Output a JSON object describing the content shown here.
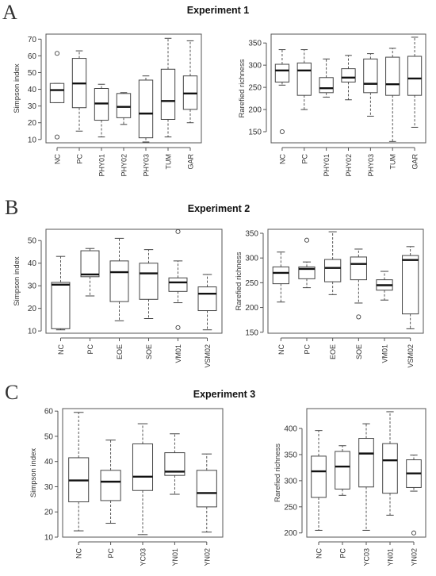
{
  "chart_data": [
    {
      "panel": "A",
      "title": "Experiment 1",
      "charts": [
        {
          "type": "boxplot",
          "ylabel": "Simpson index",
          "ylim": [
            8,
            73
          ],
          "yticks": [
            10,
            20,
            30,
            40,
            50,
            60,
            70
          ],
          "categories": [
            "NC",
            "PC",
            "PHY01",
            "PHY02",
            "PHY03",
            "TUM",
            "GAR"
          ],
          "boxes": [
            {
              "whisker_low": 32,
              "q1": 32,
              "median": 39.5,
              "q3": 43.5,
              "whisker_high": 43.5,
              "outliers": [
                61.5,
                11.5
              ]
            },
            {
              "whisker_low": 15,
              "q1": 29,
              "median": 43.5,
              "q3": 58.5,
              "whisker_high": 63,
              "outliers": []
            },
            {
              "whisker_low": 11.5,
              "q1": 21.5,
              "median": 31.5,
              "q3": 40.5,
              "whisker_high": 43,
              "outliers": []
            },
            {
              "whisker_low": 19,
              "q1": 23,
              "median": 29.5,
              "q3": 37.5,
              "whisker_high": 38,
              "outliers": []
            },
            {
              "whisker_low": 8.5,
              "q1": 11,
              "median": 25.5,
              "q3": 45.5,
              "whisker_high": 48,
              "outliers": []
            },
            {
              "whisker_low": 11.5,
              "q1": 22,
              "median": 33,
              "q3": 52,
              "whisker_high": 70.5,
              "outliers": []
            },
            {
              "whisker_low": 20,
              "q1": 28,
              "median": 37.5,
              "q3": 48,
              "whisker_high": 69,
              "outliers": []
            }
          ]
        },
        {
          "type": "boxplot",
          "ylabel": "Rarefied richness",
          "ylim": [
            125,
            370
          ],
          "yticks": [
            150,
            200,
            250,
            300,
            350
          ],
          "categories": [
            "NC",
            "PC",
            "PHY01",
            "PHY02",
            "PHY03",
            "TUM",
            "GAR"
          ],
          "boxes": [
            {
              "whisker_low": 255,
              "q1": 262,
              "median": 288,
              "q3": 302,
              "whisker_high": 335,
              "outliers": [
                150
              ]
            },
            {
              "whisker_low": 200,
              "q1": 232,
              "median": 288,
              "q3": 305,
              "whisker_high": 335,
              "outliers": []
            },
            {
              "whisker_low": 228,
              "q1": 238,
              "median": 248,
              "q3": 272,
              "whisker_high": 314,
              "outliers": []
            },
            {
              "whisker_low": 222,
              "q1": 262,
              "median": 272,
              "q3": 292,
              "whisker_high": 322,
              "outliers": []
            },
            {
              "whisker_low": 185,
              "q1": 238,
              "median": 258,
              "q3": 314,
              "whisker_high": 326,
              "outliers": []
            },
            {
              "whisker_low": 128,
              "q1": 232,
              "median": 257,
              "q3": 318,
              "whisker_high": 338,
              "outliers": []
            },
            {
              "whisker_low": 160,
              "q1": 232,
              "median": 270,
              "q3": 320,
              "whisker_high": 363,
              "outliers": []
            }
          ]
        }
      ]
    },
    {
      "panel": "B",
      "title": "Experiment 2",
      "charts": [
        {
          "type": "boxplot",
          "ylabel": "Simpson index",
          "ylim": [
            9,
            55
          ],
          "yticks": [
            10,
            20,
            30,
            40,
            50
          ],
          "categories": [
            "NC",
            "PC",
            "EOE",
            "SOE",
            "VM01",
            "VSM02"
          ],
          "boxes": [
            {
              "whisker_low": 10.5,
              "q1": 11,
              "median": 30.5,
              "q3": 31.5,
              "whisker_high": 43,
              "outliers": []
            },
            {
              "whisker_low": 25.5,
              "q1": 34,
              "median": 35,
              "q3": 45.5,
              "whisker_high": 46.5,
              "outliers": []
            },
            {
              "whisker_low": 14.5,
              "q1": 23,
              "median": 36,
              "q3": 41,
              "whisker_high": 51,
              "outliers": []
            },
            {
              "whisker_low": 15.5,
              "q1": 24,
              "median": 35.5,
              "q3": 40,
              "whisker_high": 46,
              "outliers": []
            },
            {
              "whisker_low": 22.5,
              "q1": 27.5,
              "median": 31.5,
              "q3": 33.5,
              "whisker_high": 41,
              "outliers": [
                54,
                11.5
              ]
            },
            {
              "whisker_low": 10.5,
              "q1": 19,
              "median": 26.5,
              "q3": 29.5,
              "whisker_high": 35,
              "outliers": []
            }
          ]
        },
        {
          "type": "boxplot",
          "ylabel": "Rarefied richness",
          "ylim": [
            148,
            358
          ],
          "yticks": [
            150,
            200,
            250,
            300,
            350
          ],
          "categories": [
            "NC",
            "PC",
            "EOE",
            "SOE",
            "VM01",
            "VSM02"
          ],
          "boxes": [
            {
              "whisker_low": 211,
              "q1": 248,
              "median": 270,
              "q3": 282,
              "whisker_high": 312,
              "outliers": []
            },
            {
              "whisker_low": 240,
              "q1": 258,
              "median": 278,
              "q3": 282,
              "whisker_high": 292,
              "outliers": [
                336
              ]
            },
            {
              "whisker_low": 226,
              "q1": 252,
              "median": 280,
              "q3": 297,
              "whisker_high": 353,
              "outliers": []
            },
            {
              "whisker_low": 209,
              "q1": 256,
              "median": 288,
              "q3": 302,
              "whisker_high": 318,
              "outliers": [
                181
              ]
            },
            {
              "whisker_low": 215,
              "q1": 235,
              "median": 245,
              "q3": 256,
              "whisker_high": 273,
              "outliers": []
            },
            {
              "whisker_low": 157,
              "q1": 187,
              "median": 296,
              "q3": 305,
              "whisker_high": 323,
              "outliers": []
            }
          ]
        }
      ]
    },
    {
      "panel": "C",
      "title": "Experiment 3",
      "charts": [
        {
          "type": "boxplot",
          "ylabel": "Simpson index",
          "ylim": [
            10,
            61
          ],
          "yticks": [
            10,
            20,
            30,
            40,
            50,
            60
          ],
          "categories": [
            "NC",
            "PC",
            "YC03",
            "YN01",
            "YN02"
          ],
          "boxes": [
            {
              "whisker_low": 12.5,
              "q1": 24,
              "median": 32.5,
              "q3": 41.5,
              "whisker_high": 59.5,
              "outliers": []
            },
            {
              "whisker_low": 15.5,
              "q1": 24.5,
              "median": 32,
              "q3": 36.5,
              "whisker_high": 48.5,
              "outliers": []
            },
            {
              "whisker_low": 11,
              "q1": 28.5,
              "median": 34,
              "q3": 47,
              "whisker_high": 55,
              "outliers": []
            },
            {
              "whisker_low": 27,
              "q1": 34.5,
              "median": 36,
              "q3": 43.5,
              "whisker_high": 51,
              "outliers": []
            },
            {
              "whisker_low": 12,
              "q1": 22,
              "median": 27.5,
              "q3": 36.5,
              "whisker_high": 43,
              "outliers": []
            }
          ]
        },
        {
          "type": "boxplot",
          "ylabel": "Rarefied richness",
          "ylim": [
            192,
            438
          ],
          "yticks": [
            200,
            250,
            300,
            350,
            400
          ],
          "categories": [
            "NC",
            "PC",
            "YC03",
            "YN01",
            "YN02"
          ],
          "boxes": [
            {
              "whisker_low": 205,
              "q1": 268,
              "median": 318,
              "q3": 347,
              "whisker_high": 396,
              "outliers": []
            },
            {
              "whisker_low": 272,
              "q1": 284,
              "median": 327,
              "q3": 356,
              "whisker_high": 367,
              "outliers": []
            },
            {
              "whisker_low": 205,
              "q1": 288,
              "median": 352,
              "q3": 381,
              "whisker_high": 409,
              "outliers": []
            },
            {
              "whisker_low": 234,
              "q1": 276,
              "median": 339,
              "q3": 371,
              "whisker_high": 432,
              "outliers": []
            },
            {
              "whisker_low": 280,
              "q1": 287,
              "median": 314,
              "q3": 340,
              "whisker_high": 349,
              "outliers": [
                200
              ]
            }
          ]
        }
      ]
    }
  ]
}
